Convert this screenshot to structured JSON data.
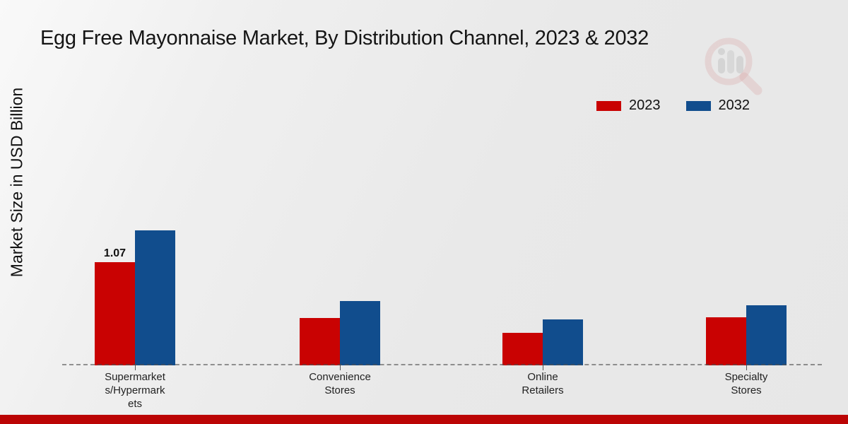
{
  "title": "Egg Free Mayonnaise Market, By Distribution Channel, 2023 & 2032",
  "y_axis_label": "Market Size in USD Billion",
  "legend": {
    "items": [
      {
        "label": "2023",
        "color": "#c90202"
      },
      {
        "label": "2032",
        "color": "#114d8d"
      }
    ]
  },
  "icons": {
    "watermark": "market-research-magnifier-logo"
  },
  "chart_data": {
    "type": "bar",
    "title": "Egg Free Mayonnaise Market, By Distribution Channel, 2023 & 2032",
    "ylabel": "Market Size in USD Billion",
    "xlabel": "",
    "categories": [
      "Supermarkets/Hypermarkets",
      "Convenience Stores",
      "Online Retailers",
      "Specialty Stores"
    ],
    "categories_wrapped": [
      [
        "Supermarket",
        "s/Hypermark",
        "ets"
      ],
      [
        "Convenience",
        "Stores"
      ],
      [
        "Online",
        "Retailers"
      ],
      [
        "Specialty",
        "Stores"
      ]
    ],
    "series": [
      {
        "name": "2023",
        "color": "#c90202",
        "values": [
          1.07,
          0.49,
          0.34,
          0.5
        ]
      },
      {
        "name": "2032",
        "color": "#114d8d",
        "values": [
          1.4,
          0.67,
          0.48,
          0.62
        ]
      }
    ],
    "data_labels": [
      {
        "series_index": 0,
        "category_index": 0,
        "text": "1.07"
      }
    ],
    "ylim": [
      0,
      1.55
    ],
    "grid": false,
    "y_axis_ticks_visible": false,
    "legend_position": "top-right",
    "x_axis_style": "dashed-gray"
  },
  "footer": {
    "accent_color": "#bb0404"
  }
}
